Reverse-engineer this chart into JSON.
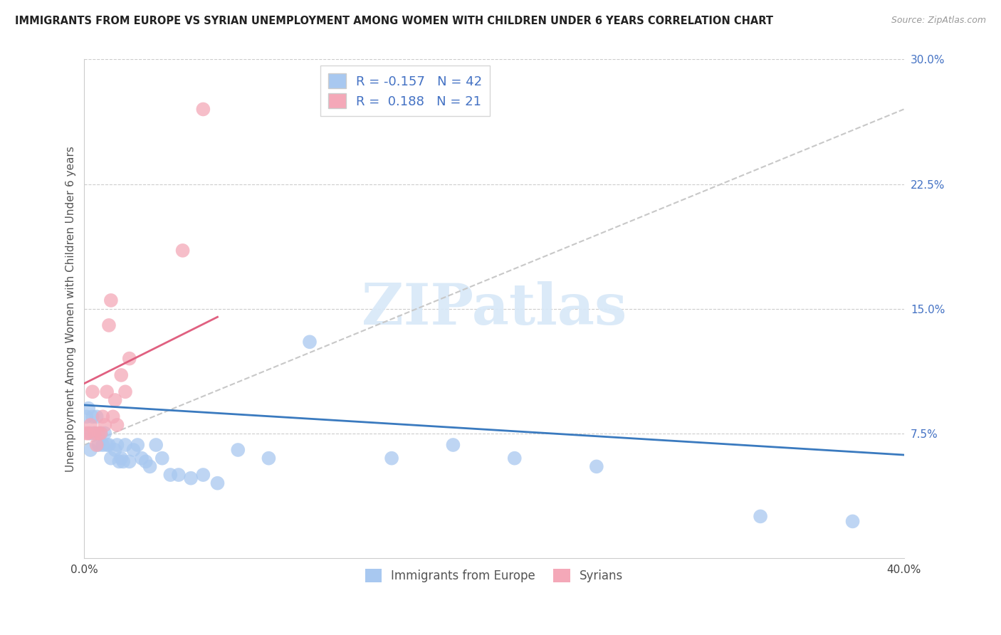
{
  "title": "IMMIGRANTS FROM EUROPE VS SYRIAN UNEMPLOYMENT AMONG WOMEN WITH CHILDREN UNDER 6 YEARS CORRELATION CHART",
  "source": "Source: ZipAtlas.com",
  "ylabel": "Unemployment Among Women with Children Under 6 years",
  "xlim": [
    0.0,
    0.4
  ],
  "ylim": [
    0.0,
    0.3
  ],
  "xticks": [
    0.0,
    0.05,
    0.1,
    0.15,
    0.2,
    0.25,
    0.3,
    0.35,
    0.4
  ],
  "yticks": [
    0.0,
    0.075,
    0.15,
    0.225,
    0.3
  ],
  "ytick_labels": [
    "",
    "7.5%",
    "15.0%",
    "22.5%",
    "30.0%"
  ],
  "xtick_labels": [
    "0.0%",
    "",
    "",
    "",
    "",
    "",
    "",
    "",
    "40.0%"
  ],
  "blue_R": -0.157,
  "blue_N": 42,
  "pink_R": 0.188,
  "pink_N": 21,
  "blue_color": "#A8C8F0",
  "pink_color": "#F4A8B8",
  "blue_line_color": "#3A7ABF",
  "pink_line_color": "#E06080",
  "dashed_line_color": "#C8C8C8",
  "watermark_color": "#D8E8F8",
  "legend_label_blue": "Immigrants from Europe",
  "legend_label_pink": "Syrians",
  "blue_scatter_x": [
    0.001,
    0.002,
    0.003,
    0.003,
    0.004,
    0.005,
    0.006,
    0.007,
    0.008,
    0.009,
    0.01,
    0.011,
    0.012,
    0.013,
    0.015,
    0.016,
    0.017,
    0.018,
    0.019,
    0.02,
    0.022,
    0.024,
    0.026,
    0.028,
    0.03,
    0.032,
    0.035,
    0.038,
    0.042,
    0.046,
    0.052,
    0.058,
    0.065,
    0.075,
    0.09,
    0.11,
    0.15,
    0.18,
    0.21,
    0.25,
    0.33,
    0.375
  ],
  "blue_scatter_y": [
    0.085,
    0.09,
    0.065,
    0.075,
    0.085,
    0.075,
    0.085,
    0.068,
    0.075,
    0.068,
    0.075,
    0.068,
    0.068,
    0.06,
    0.065,
    0.068,
    0.058,
    0.06,
    0.058,
    0.068,
    0.058,
    0.065,
    0.068,
    0.06,
    0.058,
    0.055,
    0.068,
    0.06,
    0.05,
    0.05,
    0.048,
    0.05,
    0.045,
    0.065,
    0.06,
    0.13,
    0.06,
    0.068,
    0.06,
    0.055,
    0.025,
    0.022
  ],
  "pink_scatter_x": [
    0.001,
    0.002,
    0.003,
    0.004,
    0.005,
    0.006,
    0.007,
    0.008,
    0.009,
    0.01,
    0.011,
    0.012,
    0.013,
    0.014,
    0.015,
    0.016,
    0.018,
    0.02,
    0.022,
    0.048,
    0.058
  ],
  "pink_scatter_y": [
    0.075,
    0.075,
    0.08,
    0.1,
    0.075,
    0.068,
    0.075,
    0.075,
    0.085,
    0.08,
    0.1,
    0.14,
    0.155,
    0.085,
    0.095,
    0.08,
    0.11,
    0.1,
    0.12,
    0.185,
    0.27
  ],
  "blue_line_x": [
    0.0,
    0.4
  ],
  "blue_line_y": [
    0.092,
    0.062
  ],
  "pink_line_x": [
    0.0,
    0.065
  ],
  "pink_line_y": [
    0.105,
    0.145
  ],
  "dash_line_x": [
    0.0,
    0.4
  ],
  "dash_line_y": [
    0.068,
    0.27
  ]
}
